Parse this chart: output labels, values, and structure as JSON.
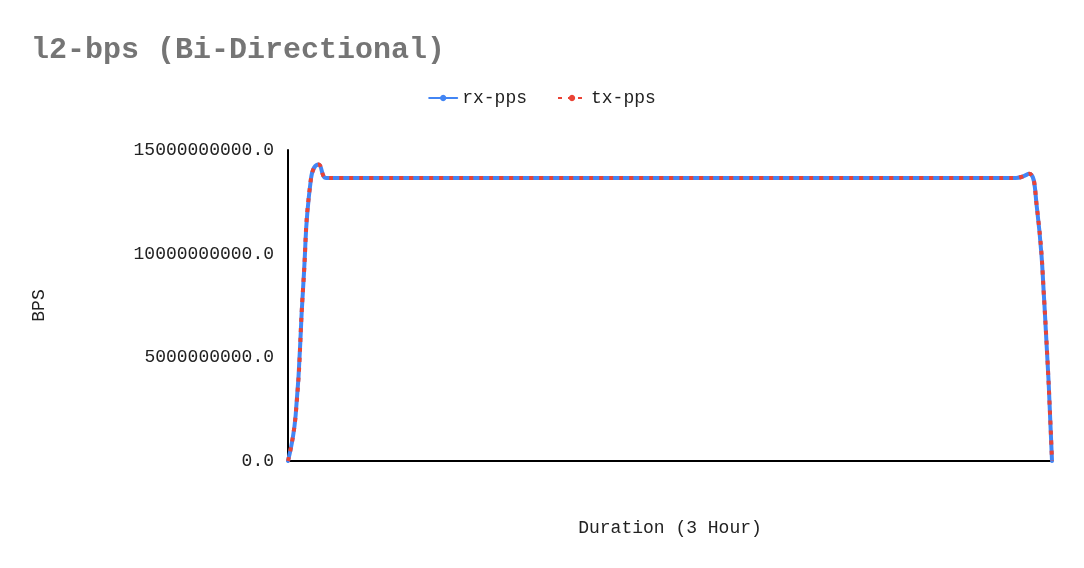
{
  "chart_data": {
    "type": "line",
    "title": "l2-bps (Bi-Directional)",
    "xlabel": "Duration (3 Hour)",
    "ylabel": "BPS",
    "categories": [
      null,
      null,
      null,
      null,
      null,
      null,
      null,
      null,
      null,
      null,
      null,
      null,
      null,
      null,
      null,
      null,
      null,
      null,
      null,
      null,
      null,
      null,
      null,
      null,
      null,
      null,
      null,
      null,
      null,
      null,
      null,
      null,
      null,
      null,
      null,
      null,
      null,
      null,
      null,
      null,
      null,
      null,
      null,
      null,
      null,
      null,
      null,
      null,
      null,
      null,
      null,
      null,
      null,
      null,
      null,
      null,
      null,
      null,
      null,
      null,
      null,
      null,
      null,
      null,
      null,
      null,
      null,
      null,
      null,
      null,
      null,
      null,
      null,
      null,
      null,
      null,
      null,
      null,
      null,
      null,
      null,
      null,
      null,
      null,
      null,
      null,
      null,
      null,
      null,
      null,
      null,
      null,
      null,
      null,
      null,
      null,
      null,
      null,
      null,
      null,
      null
    ],
    "series": [
      {
        "name": "rx-pps",
        "color": "#4285f4",
        "line_style": "solid",
        "values": [
          0,
          2200000000,
          8500000000,
          13600000000,
          14300000000,
          13650000000,
          13650000000,
          13650000000,
          13650000000,
          13650000000,
          13650000000,
          13650000000,
          13650000000,
          13650000000,
          13650000000,
          13650000000,
          13650000000,
          13650000000,
          13650000000,
          13650000000,
          13650000000,
          13650000000,
          13650000000,
          13650000000,
          13650000000,
          13650000000,
          13650000000,
          13650000000,
          13650000000,
          13650000000,
          13650000000,
          13650000000,
          13650000000,
          13650000000,
          13650000000,
          13650000000,
          13650000000,
          13650000000,
          13650000000,
          13650000000,
          13650000000,
          13650000000,
          13650000000,
          13650000000,
          13650000000,
          13650000000,
          13650000000,
          13650000000,
          13650000000,
          13650000000,
          13650000000,
          13650000000,
          13650000000,
          13650000000,
          13650000000,
          13650000000,
          13650000000,
          13650000000,
          13650000000,
          13650000000,
          13650000000,
          13650000000,
          13650000000,
          13650000000,
          13650000000,
          13650000000,
          13650000000,
          13650000000,
          13650000000,
          13650000000,
          13650000000,
          13650000000,
          13650000000,
          13650000000,
          13650000000,
          13650000000,
          13650000000,
          13650000000,
          13650000000,
          13650000000,
          13650000000,
          13650000000,
          13650000000,
          13650000000,
          13650000000,
          13650000000,
          13650000000,
          13650000000,
          13650000000,
          13650000000,
          13650000000,
          13650000000,
          13650000000,
          13650000000,
          13650000000,
          13650000000,
          13700000000,
          13850000000,
          12300000000,
          7600000000,
          0
        ]
      },
      {
        "name": "tx-pps",
        "color": "#ea4335",
        "line_style": "dotted",
        "values": [
          0,
          2200000000,
          8500000000,
          13600000000,
          14300000000,
          13650000000,
          13650000000,
          13650000000,
          13650000000,
          13650000000,
          13650000000,
          13650000000,
          13650000000,
          13650000000,
          13650000000,
          13650000000,
          13650000000,
          13650000000,
          13650000000,
          13650000000,
          13650000000,
          13650000000,
          13650000000,
          13650000000,
          13650000000,
          13650000000,
          13650000000,
          13650000000,
          13650000000,
          13650000000,
          13650000000,
          13650000000,
          13650000000,
          13650000000,
          13650000000,
          13650000000,
          13650000000,
          13650000000,
          13650000000,
          13650000000,
          13650000000,
          13650000000,
          13650000000,
          13650000000,
          13650000000,
          13650000000,
          13650000000,
          13650000000,
          13650000000,
          13650000000,
          13650000000,
          13650000000,
          13650000000,
          13650000000,
          13650000000,
          13650000000,
          13650000000,
          13650000000,
          13650000000,
          13650000000,
          13650000000,
          13650000000,
          13650000000,
          13650000000,
          13650000000,
          13650000000,
          13650000000,
          13650000000,
          13650000000,
          13650000000,
          13650000000,
          13650000000,
          13650000000,
          13650000000,
          13650000000,
          13650000000,
          13650000000,
          13650000000,
          13650000000,
          13650000000,
          13650000000,
          13650000000,
          13650000000,
          13650000000,
          13650000000,
          13650000000,
          13650000000,
          13650000000,
          13650000000,
          13650000000,
          13650000000,
          13650000000,
          13650000000,
          13650000000,
          13650000000,
          13650000000,
          13700000000,
          13850000000,
          12300000000,
          7600000000,
          0
        ]
      }
    ],
    "ylim": [
      0,
      15000000000
    ],
    "yticks": [
      {
        "value": 0,
        "label": "0.0"
      },
      {
        "value": 5000000000,
        "label": "5000000000.0"
      },
      {
        "value": 10000000000,
        "label": "10000000000.0"
      },
      {
        "value": 15000000000,
        "label": "15000000000.0"
      }
    ],
    "legend": "top",
    "marker": "none",
    "grid": false
  }
}
